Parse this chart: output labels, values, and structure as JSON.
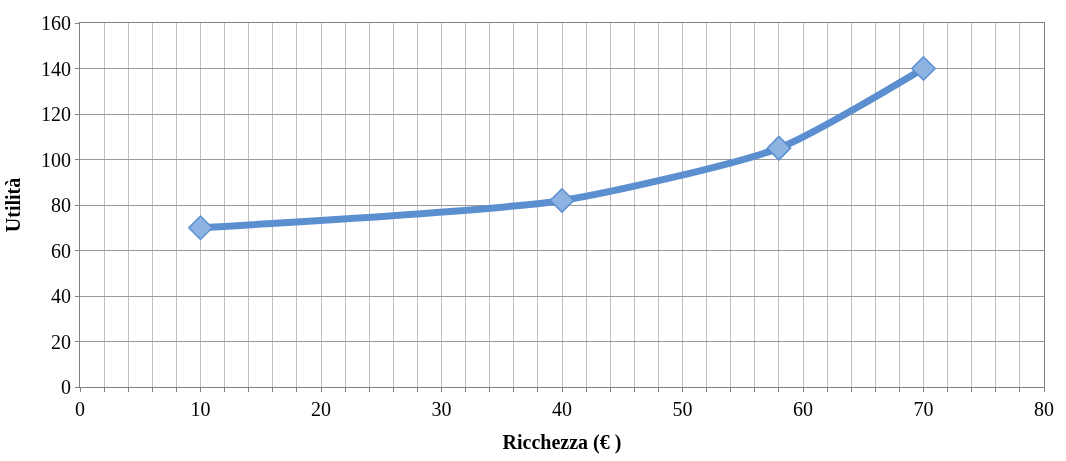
{
  "chart_data": {
    "type": "line",
    "xlabel": "Ricchezza (€ )",
    "ylabel": "Utilità",
    "x": [
      10,
      40,
      58,
      70
    ],
    "series": [
      {
        "color": "#5b8fcf",
        "values": [
          70,
          82,
          105,
          140
        ]
      }
    ],
    "xlim": [
      0,
      80
    ],
    "ylim": [
      0,
      160
    ],
    "xticks": [
      0,
      {
        "value": 2,
        "label": null
      },
      {
        "value": 4,
        "label": null
      },
      {
        "value": 6,
        "label": null
      },
      {
        "value": 8,
        "label": null
      },
      10,
      {
        "value": 12,
        "label": null
      },
      {
        "value": 14,
        "label": null
      },
      {
        "value": 16,
        "label": null
      },
      {
        "value": 18,
        "label": null
      },
      20,
      {
        "value": 22,
        "label": null
      },
      {
        "value": 24,
        "label": null
      },
      {
        "value": 26,
        "label": null
      },
      {
        "value": 28,
        "label": null
      },
      30,
      {
        "value": 32,
        "label": null
      },
      {
        "value": 34,
        "label": null
      },
      {
        "value": 36,
        "label": null
      },
      {
        "value": 38,
        "label": null
      },
      40,
      {
        "value": 42,
        "label": null
      },
      {
        "value": 44,
        "label": null
      },
      {
        "value": 46,
        "label": null
      },
      {
        "value": 48,
        "label": null
      },
      50,
      {
        "value": 52,
        "label": null
      },
      {
        "value": 54,
        "label": null
      },
      {
        "value": 56,
        "label": null
      },
      {
        "value": 58,
        "label": null
      },
      60,
      {
        "value": 62,
        "label": null
      },
      {
        "value": 64,
        "label": null
      },
      {
        "value": 66,
        "label": null
      },
      {
        "value": 68,
        "label": null
      },
      70,
      {
        "value": 72,
        "label": null
      },
      {
        "value": 74,
        "label": null
      },
      {
        "value": 76,
        "label": null
      },
      {
        "value": 78,
        "label": null
      },
      80
    ],
    "yticks": [
      0,
      20,
      40,
      60,
      80,
      100,
      120,
      140,
      160
    ],
    "grid": true,
    "marker": "diamond",
    "line_style": "solid"
  }
}
